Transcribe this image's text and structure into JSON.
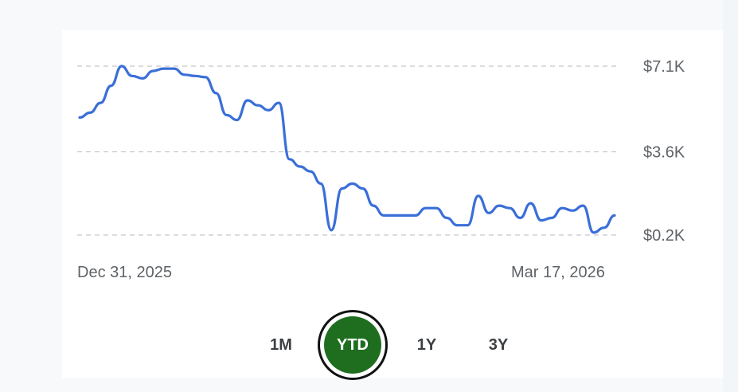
{
  "chart_data": {
    "type": "line",
    "x_start_label": "Dec 31, 2025",
    "x_end_label": "Mar 17, 2026",
    "y_tick_labels": [
      "$7.1K",
      "$3.6K",
      "$0.2K"
    ],
    "y_ticks": [
      7.1,
      3.6,
      0.2
    ],
    "ylim": [
      0.2,
      7.1
    ],
    "grid": "horizontal-dashed",
    "line_color": "#3a6fd8",
    "values": [
      5.0,
      5.2,
      5.6,
      6.3,
      7.1,
      6.7,
      6.6,
      6.9,
      7.0,
      7.0,
      6.75,
      6.7,
      6.65,
      6.0,
      5.1,
      4.9,
      5.7,
      5.5,
      5.3,
      5.6,
      3.3,
      3.0,
      2.8,
      2.3,
      0.4,
      2.1,
      2.3,
      2.1,
      1.4,
      1.0,
      1.0,
      1.0,
      1.0,
      1.3,
      1.3,
      0.9,
      0.6,
      0.6,
      1.8,
      1.1,
      1.4,
      1.3,
      0.9,
      1.5,
      0.8,
      0.9,
      1.3,
      1.2,
      1.4,
      0.3,
      0.5,
      1.0
    ]
  },
  "range_selector": {
    "options": [
      "1M",
      "YTD",
      "1Y",
      "3Y"
    ],
    "selected": "YTD",
    "selected_color": "#1f6e1f"
  }
}
